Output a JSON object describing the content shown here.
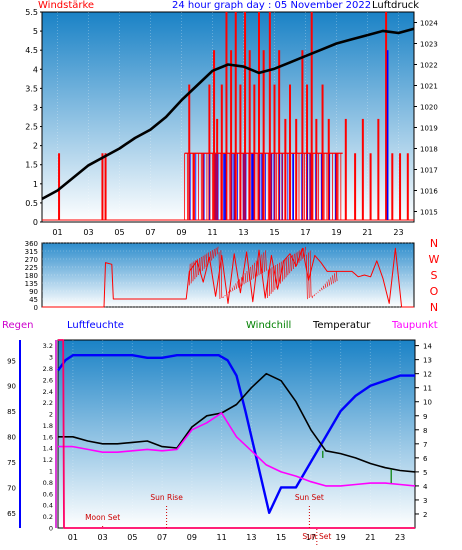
{
  "page_title": "24 hour graph day : 05 November 2022",
  "colors": {
    "frame": "#000000",
    "plot_top": "#1a82c6",
    "plot_bottom": "#ffffff",
    "wind": "#ff0000",
    "gust": "#0000ff",
    "pressure": "#000000",
    "temperature": "#000000",
    "humidity": "#0000ff",
    "dewpoint": "#ff00ff",
    "windchill": "#008000",
    "rain": "#ff0066",
    "labels_red": "#ff0000",
    "labels_blue": "#0000ff",
    "labels_magenta": "#cc00cc",
    "labels_green": "#008000",
    "marker": "#cc0000"
  },
  "chart_data": [
    {
      "type": "line",
      "panel": "wind-pressure",
      "title": "24 hour graph day : 05 November 2022",
      "left_axis_label": "Windstärke",
      "right_axis_label": "Luftdruck",
      "x_ticks": [
        "01",
        "03",
        "05",
        "07",
        "09",
        "11",
        "13",
        "15",
        "17",
        "19",
        "21",
        "23"
      ],
      "y_left_ticks": [
        "0",
        "0.5",
        "1",
        "1.5",
        "2",
        "2.5",
        "3",
        "3.5",
        "4",
        "4.5",
        "5",
        "5.5"
      ],
      "y_left_range": [
        0,
        5.5
      ],
      "y_right_ticks": [
        "1015",
        "1016",
        "1017",
        "1018",
        "1019",
        "1020",
        "1021",
        "1022",
        "1023",
        "1024"
      ],
      "y_right_range": [
        1014.5,
        1024.5
      ],
      "pressure": {
        "x": [
          0,
          1,
          2,
          3,
          4,
          5,
          6,
          7,
          8,
          9,
          10,
          11,
          12,
          13,
          14,
          15,
          16,
          17,
          18,
          19,
          20,
          21,
          22,
          23,
          24
        ],
        "y": [
          1015.6,
          1016.0,
          1016.6,
          1017.2,
          1017.6,
          1018.0,
          1018.5,
          1018.9,
          1019.5,
          1020.3,
          1021.0,
          1021.7,
          1022.0,
          1021.9,
          1021.6,
          1021.8,
          1022.1,
          1022.4,
          1022.7,
          1023.0,
          1023.2,
          1023.4,
          1023.6,
          1023.5,
          1023.7
        ]
      },
      "wind_events": [
        {
          "h": 1.1,
          "v": 1.8
        },
        {
          "h": 3.9,
          "v": 1.8
        },
        {
          "h": 4.1,
          "v": 1.8
        },
        {
          "h": 9.5,
          "v": 3.6
        },
        {
          "h": 9.8,
          "v": 1.8
        },
        {
          "h": 10.4,
          "v": 1.8
        },
        {
          "h": 10.8,
          "v": 3.6
        },
        {
          "h": 11.1,
          "v": 4.5
        },
        {
          "h": 11.3,
          "v": 2.7
        },
        {
          "h": 11.6,
          "v": 3.6
        },
        {
          "h": 11.9,
          "v": 5.5
        },
        {
          "h": 12.2,
          "v": 4.5
        },
        {
          "h": 12.5,
          "v": 5.5
        },
        {
          "h": 12.8,
          "v": 3.6
        },
        {
          "h": 13.1,
          "v": 5.5
        },
        {
          "h": 13.4,
          "v": 4.5
        },
        {
          "h": 13.7,
          "v": 3.6
        },
        {
          "h": 14.0,
          "v": 5.5
        },
        {
          "h": 14.3,
          "v": 4.5
        },
        {
          "h": 14.7,
          "v": 5.5
        },
        {
          "h": 15.0,
          "v": 3.6
        },
        {
          "h": 15.3,
          "v": 4.5
        },
        {
          "h": 15.7,
          "v": 2.7
        },
        {
          "h": 16.0,
          "v": 3.6
        },
        {
          "h": 16.4,
          "v": 2.7
        },
        {
          "h": 16.8,
          "v": 4.5
        },
        {
          "h": 17.1,
          "v": 3.6
        },
        {
          "h": 17.4,
          "v": 5.5
        },
        {
          "h": 17.7,
          "v": 2.7
        },
        {
          "h": 18.1,
          "v": 3.6
        },
        {
          "h": 18.5,
          "v": 2.7
        },
        {
          "h": 19.0,
          "v": 1.8
        },
        {
          "h": 19.6,
          "v": 2.7
        },
        {
          "h": 20.2,
          "v": 1.8
        },
        {
          "h": 20.7,
          "v": 2.7
        },
        {
          "h": 21.2,
          "v": 1.8
        },
        {
          "h": 21.7,
          "v": 2.7
        },
        {
          "h": 22.2,
          "v": 5.5
        },
        {
          "h": 22.6,
          "v": 1.8
        },
        {
          "h": 23.1,
          "v": 1.8
        },
        {
          "h": 23.6,
          "v": 1.8
        }
      ],
      "gust_events": [
        {
          "h": 11.2,
          "v": 1.8
        },
        {
          "h": 11.8,
          "v": 1.8
        },
        {
          "h": 12.4,
          "v": 1.8
        },
        {
          "h": 13.0,
          "v": 1.8
        },
        {
          "h": 13.6,
          "v": 1.8
        },
        {
          "h": 14.2,
          "v": 1.8
        },
        {
          "h": 14.8,
          "v": 1.8
        },
        {
          "h": 15.5,
          "v": 1.8
        },
        {
          "h": 16.2,
          "v": 1.8
        },
        {
          "h": 17.3,
          "v": 1.8
        },
        {
          "h": 22.3,
          "v": 4.5
        }
      ]
    },
    {
      "type": "line",
      "panel": "wind-direction",
      "y_left_ticks": [
        "0",
        "45",
        "90",
        "135",
        "180",
        "225",
        "270",
        "315",
        "360"
      ],
      "y_left_range": [
        0,
        360
      ],
      "compass_labels": [
        "N",
        "W",
        "S",
        "O",
        "N"
      ],
      "direction": {
        "x": [
          0,
          4.0,
          4.1,
          4.5,
          4.6,
          9.3,
          9.5,
          10.0,
          10.4,
          10.8,
          11.2,
          11.6,
          12.0,
          12.4,
          12.8,
          13.2,
          13.6,
          14.0,
          14.4,
          14.8,
          15.2,
          15.6,
          16.0,
          16.4,
          16.8,
          17.2,
          17.6,
          18.0,
          18.4,
          18.8,
          19.2,
          19.6,
          20.0,
          20.4,
          20.8,
          21.2,
          21.6,
          22.0,
          22.4,
          22.8,
          23.2,
          24
        ],
        "y": [
          0,
          0,
          250,
          240,
          45,
          45,
          200,
          260,
          140,
          280,
          60,
          290,
          20,
          300,
          80,
          310,
          30,
          320,
          50,
          290,
          100,
          260,
          300,
          230,
          330,
          150,
          290,
          250,
          200,
          200,
          200,
          200,
          200,
          170,
          180,
          170,
          260,
          160,
          20,
          330,
          0,
          0
        ]
      }
    },
    {
      "type": "line",
      "panel": "temperature-humidity",
      "series_labels": {
        "rain": "Regen",
        "humidity": "Luftfeuchte",
        "windchill": "Windchill",
        "temperature": "Temperatur",
        "dewpoint": "Taupunkt"
      },
      "y_rain_ticks": [
        "0",
        "0.2",
        "0.4",
        "0.6",
        "0.8",
        "1",
        "1.2",
        "1.4",
        "1.6",
        "1.8",
        "2",
        "2.2",
        "2.4",
        "2.6",
        "2.8",
        "3",
        "3.2"
      ],
      "y_rain_range": [
        0,
        3.3
      ],
      "y_humidity_ticks": [
        "65",
        "70",
        "75",
        "80",
        "85",
        "90",
        "95"
      ],
      "y_humidity_range": [
        62,
        99
      ],
      "y_temp_ticks": [
        "2",
        "3",
        "4",
        "5",
        "6",
        "7",
        "8",
        "9",
        "10",
        "11",
        "12",
        "13",
        "14"
      ],
      "y_temp_range": [
        1,
        14.4
      ],
      "temperature": {
        "x": [
          0,
          1,
          2,
          3,
          4,
          5,
          6,
          7,
          8,
          9,
          10,
          11,
          12,
          13,
          14,
          15,
          16,
          17,
          18,
          19,
          20,
          21,
          22,
          23,
          24
        ],
        "y": [
          7.5,
          7.5,
          7.2,
          7.0,
          7.0,
          7.1,
          7.2,
          6.8,
          6.7,
          8.2,
          9.0,
          9.2,
          9.8,
          11.0,
          12.0,
          11.5,
          10.0,
          8.0,
          6.5,
          6.3,
          6.0,
          5.6,
          5.3,
          5.1,
          5.0
        ]
      },
      "dewpoint": {
        "x": [
          0,
          1,
          2,
          3,
          4,
          5,
          6,
          7,
          8,
          9,
          10,
          11,
          12,
          13,
          14,
          15,
          16,
          17,
          18,
          19,
          20,
          21,
          22,
          23,
          24
        ],
        "y": [
          6.8,
          6.8,
          6.6,
          6.4,
          6.4,
          6.5,
          6.6,
          6.5,
          6.6,
          8.0,
          8.5,
          9.2,
          7.5,
          6.5,
          5.5,
          5.0,
          4.7,
          4.3,
          4.0,
          4.0,
          4.1,
          4.2,
          4.2,
          4.1,
          4.0
        ]
      },
      "windchill": {
        "x": [
          17.8,
          17.8,
          22.4,
          22.4
        ],
        "y": [
          6.5,
          6.0,
          5.2,
          4.2
        ]
      },
      "humidity": {
        "x": [
          0,
          0.5,
          1,
          2,
          3,
          4,
          5,
          6,
          7,
          8,
          9,
          10,
          10.8,
          11.4,
          12,
          12.6,
          13.4,
          14.2,
          15,
          16,
          17,
          18,
          19,
          20,
          21,
          22,
          23,
          24
        ],
        "y": [
          93,
          95,
          96,
          96,
          96,
          96,
          96,
          95.5,
          95.5,
          96,
          96,
          96,
          96,
          95,
          92,
          85,
          75,
          65,
          70,
          70,
          75,
          80,
          85,
          88,
          90,
          91,
          92,
          92
        ]
      },
      "rain": {
        "x": [
          0,
          0.35,
          0.4,
          24
        ],
        "y": [
          3.3,
          3.3,
          0,
          0
        ]
      },
      "annotations": [
        {
          "label": "Sun Rise",
          "h": 7.3
        },
        {
          "label": "Sun Set",
          "h": 16.9
        },
        {
          "label": "Moon Set",
          "h": 3.0
        },
        {
          "label": "Sun Set",
          "h": 17.4
        }
      ],
      "x_ticks": [
        "01",
        "03",
        "05",
        "07",
        "09",
        "11",
        "13",
        "15",
        "17",
        "19",
        "21",
        "23"
      ]
    }
  ]
}
